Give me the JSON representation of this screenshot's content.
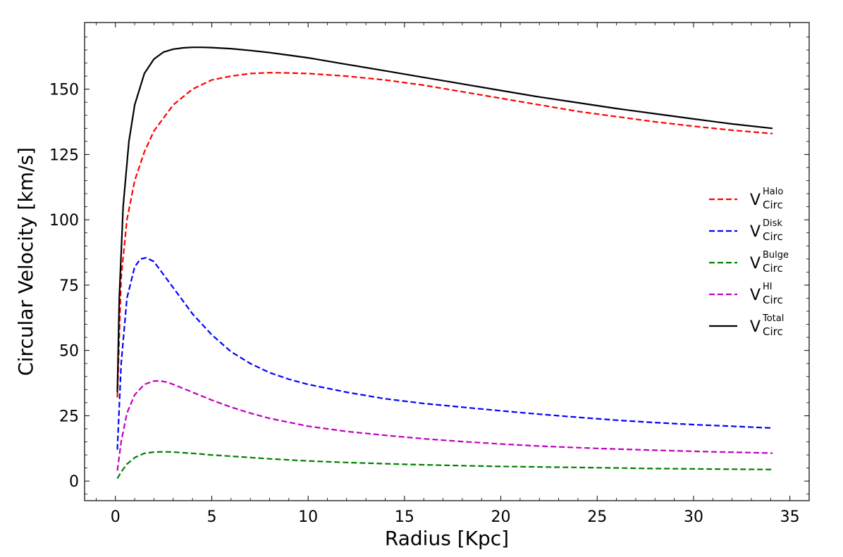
{
  "chart_data": {
    "type": "line",
    "xlabel": "Radius [Kpc]",
    "ylabel": "Circular Velocity [km/s]",
    "xlim": [
      -1.6,
      36.0
    ],
    "ylim": [
      -7.5,
      175.5
    ],
    "xticks": [
      0,
      5,
      10,
      15,
      20,
      25,
      30,
      35
    ],
    "yticks": [
      0,
      25,
      50,
      75,
      100,
      125,
      150
    ],
    "legend_position": "center-right",
    "grid": false,
    "series": [
      {
        "name": "V_Circ^Halo",
        "legend_main": "V",
        "legend_sup": "Halo",
        "legend_sub": "Circ",
        "color": "#ff0000",
        "dash": true,
        "x": [
          0.1,
          0.3,
          0.6,
          1.0,
          1.5,
          2.0,
          3.0,
          4.0,
          5.0,
          6.0,
          7.0,
          8.0,
          9.0,
          10.0,
          12.0,
          14.0,
          16.0,
          18.0,
          20.0,
          22.0,
          24.0,
          26.0,
          28.0,
          30.0,
          32.0,
          34.1
        ],
        "y": [
          32,
          78,
          100,
          115,
          126,
          134,
          144,
          150,
          153.5,
          155,
          156,
          156.3,
          156.2,
          156,
          155,
          153.5,
          151.5,
          149,
          146.5,
          144,
          141.5,
          139.5,
          137.5,
          135.8,
          134.3,
          133
        ]
      },
      {
        "name": "V_Circ^Disk",
        "legend_main": "V",
        "legend_sup": "Disk",
        "legend_sub": "Circ",
        "color": "#0000ff",
        "dash": true,
        "x": [
          0.1,
          0.3,
          0.6,
          1.0,
          1.3,
          1.6,
          2.0,
          2.5,
          3.0,
          4.0,
          5.0,
          6.0,
          7.0,
          8.0,
          9.0,
          10.0,
          12.0,
          14.0,
          16.0,
          18.0,
          20.0,
          22.0,
          24.0,
          26.0,
          28.0,
          30.0,
          32.0,
          34.1
        ],
        "y": [
          12,
          45,
          70,
          82,
          85,
          85.5,
          84,
          79,
          74,
          64,
          56,
          49.5,
          45,
          41.5,
          39,
          37,
          34,
          31.5,
          29.7,
          28.3,
          26.9,
          25.6,
          24.4,
          23.3,
          22.4,
          21.6,
          21,
          20.3
        ]
      },
      {
        "name": "V_Circ^Bulge",
        "legend_main": "V",
        "legend_sup": "Bulge",
        "legend_sub": "Circ",
        "color": "#008000",
        "dash": true,
        "x": [
          0.1,
          0.3,
          0.6,
          1.0,
          1.5,
          2.0,
          2.5,
          3.0,
          4.0,
          5.0,
          6.0,
          8.0,
          10.0,
          12.0,
          15.0,
          18.0,
          20.0,
          22.0,
          25.0,
          28.0,
          31.0,
          34.1
        ],
        "y": [
          1,
          3.5,
          6.5,
          9,
          10.6,
          11.1,
          11.2,
          11.1,
          10.6,
          10,
          9.5,
          8.5,
          7.7,
          7.1,
          6.4,
          5.9,
          5.6,
          5.4,
          5.1,
          4.8,
          4.6,
          4.4
        ]
      },
      {
        "name": "V_Circ^HI",
        "legend_main": "V",
        "legend_sup": "HI",
        "legend_sub": "Circ",
        "color": "#bf00bf",
        "dash": true,
        "x": [
          0.1,
          0.3,
          0.6,
          1.0,
          1.5,
          2.0,
          2.3,
          2.7,
          3.0,
          4.0,
          5.0,
          6.0,
          7.0,
          8.0,
          10.0,
          12.0,
          14.0,
          16.0,
          18.0,
          20.0,
          22.0,
          25.0,
          28.0,
          31.0,
          34.1
        ],
        "y": [
          4,
          15,
          26,
          33,
          37,
          38.3,
          38.4,
          37.8,
          37,
          34,
          31,
          28.3,
          26,
          24,
          21,
          19,
          17.5,
          16.2,
          15.1,
          14.2,
          13.4,
          12.5,
          11.8,
          11.2,
          10.7
        ]
      },
      {
        "name": "V_Circ^Total",
        "legend_main": "V",
        "legend_sup": "Total",
        "legend_sub": "Circ",
        "color": "#000000",
        "dash": false,
        "x": [
          0.1,
          0.2,
          0.4,
          0.7,
          1.0,
          1.5,
          2.0,
          2.5,
          3.0,
          3.5,
          4.0,
          4.5,
          5.0,
          6.0,
          7.0,
          8.0,
          9.0,
          10.0,
          12.0,
          14.0,
          16.0,
          18.0,
          20.0,
          22.0,
          24.0,
          26.0,
          28.0,
          30.0,
          32.0,
          34.1
        ],
        "y": [
          34,
          70,
          105,
          130,
          144,
          156,
          161.5,
          164.2,
          165.3,
          165.8,
          166,
          166,
          165.9,
          165.5,
          164.8,
          164,
          163,
          162,
          159.5,
          157,
          154.5,
          152,
          149.5,
          147,
          144.8,
          142.6,
          140.6,
          138.6,
          136.7,
          135
        ]
      }
    ]
  }
}
